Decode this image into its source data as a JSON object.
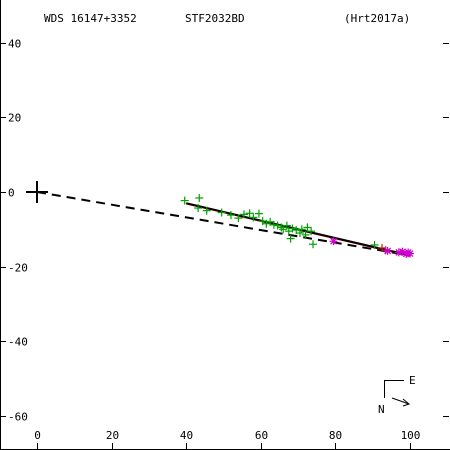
{
  "header": {
    "left": "WDS 16147+3352",
    "center": "STF2032BD",
    "right": "(Hrt2017a)"
  },
  "compass": {
    "east": "E",
    "north": "N"
  },
  "chart_data": {
    "type": "scatter",
    "title": "",
    "xlabel": "",
    "ylabel": "",
    "xlim": [
      -10,
      110
    ],
    "ylim": [
      -68,
      48
    ],
    "x_ticks": [
      0,
      20,
      40,
      60,
      80,
      100
    ],
    "y_ticks": [
      40,
      20,
      0,
      -20,
      -40,
      -60
    ],
    "grid": false,
    "primary_star": {
      "x": 0,
      "y": 0
    },
    "fit_line": [
      [
        40,
        -3
      ],
      [
        100,
        -17
      ]
    ],
    "dashed_line": [
      [
        0,
        0
      ],
      [
        100,
        -17
      ]
    ],
    "series": [
      {
        "marker": "plus",
        "color": "#00a000",
        "points": [
          [
            39.6,
            -2.3
          ],
          [
            43.5,
            -1.6
          ],
          [
            43.2,
            -4.3
          ],
          [
            45.5,
            -5.0
          ],
          [
            49.5,
            -5.5
          ],
          [
            52.0,
            -6.2
          ],
          [
            54.0,
            -7.0
          ],
          [
            55.5,
            -6.0
          ],
          [
            57.0,
            -5.7
          ],
          [
            58.0,
            -6.8
          ],
          [
            59.5,
            -5.8
          ],
          [
            60.5,
            -7.8
          ],
          [
            61.5,
            -8.5
          ],
          [
            62.5,
            -8.0
          ],
          [
            63.5,
            -8.8
          ],
          [
            64.5,
            -9.0
          ],
          [
            65.5,
            -9.5
          ],
          [
            66.0,
            -10.0
          ],
          [
            67.0,
            -9.0
          ],
          [
            67.5,
            -10.5
          ],
          [
            68.0,
            -12.5
          ],
          [
            68.5,
            -9.8
          ],
          [
            69.5,
            -10.2
          ],
          [
            70.5,
            -11.0
          ],
          [
            71.0,
            -10.0
          ],
          [
            72.0,
            -11.5
          ],
          [
            72.5,
            -9.5
          ],
          [
            73.5,
            -10.5
          ],
          [
            74.0,
            -14.0
          ],
          [
            90.5,
            -14.2
          ]
        ]
      },
      {
        "marker": "plus",
        "color": "#b22222",
        "points": [
          [
            92.5,
            -15.0
          ],
          [
            93.5,
            -15.6
          ]
        ]
      },
      {
        "marker": "asterisk",
        "color": "#d000d0",
        "points": [
          [
            79.5,
            -13.2
          ],
          [
            94.0,
            -15.8
          ],
          [
            97.0,
            -16.2
          ],
          [
            98.0,
            -16.0
          ],
          [
            99.0,
            -16.6
          ],
          [
            99.5,
            -16.2
          ],
          [
            100.0,
            -16.5
          ]
        ]
      }
    ]
  }
}
